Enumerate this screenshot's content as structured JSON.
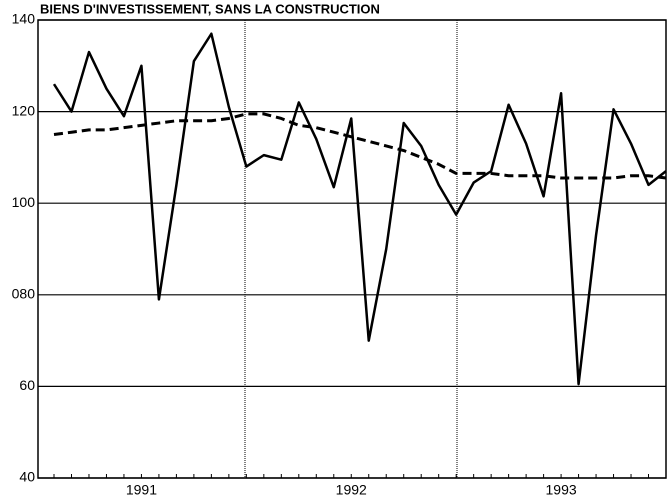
{
  "chart_data": {
    "type": "line",
    "title": "BIENS D'INVESTISSEMENT, SANS LA CONSTRUCTION",
    "categories": [
      null,
      null,
      null,
      null,
      null,
      "1991",
      null,
      null,
      null,
      null,
      null,
      null,
      null,
      null,
      null,
      null,
      null,
      "1992",
      null,
      null,
      null,
      null,
      null,
      null,
      null,
      null,
      null,
      null,
      null,
      "1993",
      null,
      null,
      null,
      null,
      null,
      null
    ],
    "series": [
      {
        "color": "#000000",
        "dashed": false,
        "values": [
          126,
          120,
          133,
          125,
          119,
          130,
          79,
          104,
          131,
          137,
          121,
          108,
          110.5,
          109.5,
          122,
          114,
          103.5,
          118.5,
          70,
          90,
          117.5,
          112.5,
          104,
          97.5,
          104.5,
          107,
          121.5,
          113,
          101.5,
          124,
          60.5,
          93,
          120.5,
          113,
          104,
          107
        ]
      },
      {
        "color": "#000000",
        "dashed": true,
        "values": [
          115,
          115.5,
          116,
          116,
          116.5,
          117,
          117.5,
          118,
          118,
          118,
          118.5,
          119.5,
          119.5,
          118.5,
          117,
          116.5,
          115.5,
          114.5,
          113.5,
          112.5,
          111.5,
          110,
          108.5,
          106.5,
          106.5,
          106.5,
          106,
          106,
          106,
          105.5,
          105.5,
          105.5,
          105.5,
          106,
          106,
          105.5
        ]
      }
    ],
    "ylim": [
      40,
      140
    ],
    "yticks": [
      40,
      60,
      {
        "value": 80,
        "label": "080"
      },
      100,
      120,
      140
    ],
    "grid": true
  }
}
